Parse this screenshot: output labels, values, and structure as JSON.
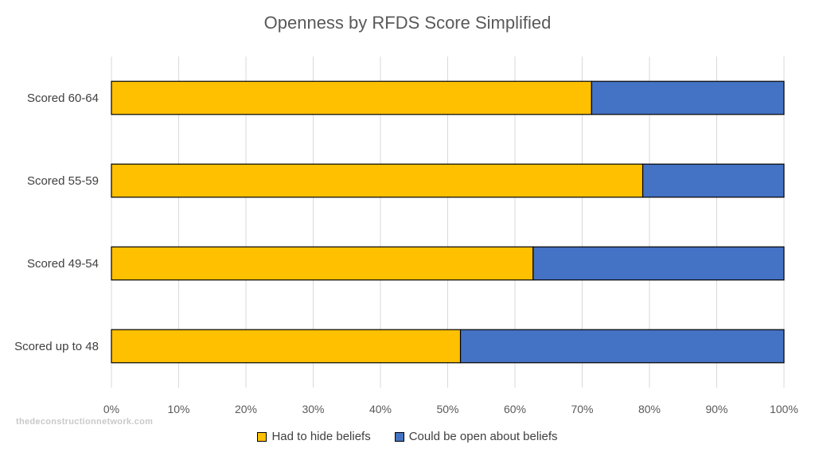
{
  "chart_data": {
    "type": "bar",
    "orientation": "horizontal",
    "stacked": true,
    "percent_stacked": true,
    "title": "Openness by RFDS Score Simplified",
    "categories": [
      "Scored 60-64",
      "Scored 55-59",
      "Scored 49-54",
      "Scored up to 48"
    ],
    "series": [
      {
        "name": "Had to hide beliefs",
        "color": "#FFC000",
        "values": [
          71.4,
          79.0,
          62.7,
          51.9
        ]
      },
      {
        "name": "Could be open about beliefs",
        "color": "#4472C4",
        "values": [
          28.6,
          21.0,
          37.3,
          48.1
        ]
      }
    ],
    "xlim": [
      0,
      100
    ],
    "x_ticks": [
      "0%",
      "10%",
      "20%",
      "30%",
      "40%",
      "50%",
      "60%",
      "70%",
      "80%",
      "90%",
      "100%"
    ],
    "grid": true,
    "legend_position": "bottom"
  },
  "watermark": "thedeconstructionnetwork.com"
}
